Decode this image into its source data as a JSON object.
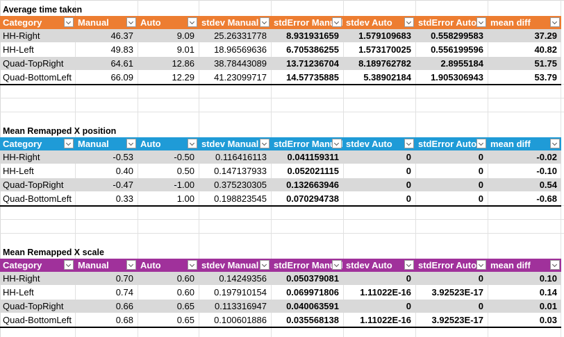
{
  "colors": {
    "orange_header": "#ed7d31",
    "blue_header": "#1f9bd7",
    "purple_header": "#a0319b",
    "stripe": "#d9d9d9"
  },
  "columns": [
    "Category",
    "Manual",
    "Auto",
    "stdev Manual",
    "stdError Manual",
    "stdev Auto",
    "stdError Auto",
    "mean diff"
  ],
  "tables": [
    {
      "title": "Average time taken",
      "rows": [
        [
          "HH-Right",
          "46.37",
          "9.09",
          "25.26331778",
          "8.931931659",
          "1.579109683",
          "0.558299583",
          "37.29"
        ],
        [
          "HH-Left",
          "49.83",
          "9.01",
          "18.96569636",
          "6.705386255",
          "1.573170025",
          "0.556199596",
          "40.82"
        ],
        [
          "Quad-TopRight",
          "64.61",
          "12.86",
          "38.78443089",
          "13.71236704",
          "8.189762782",
          "2.8955184",
          "51.75"
        ],
        [
          "Quad-BottomLeft",
          "66.09",
          "12.29",
          "41.23099717",
          "14.57735885",
          "5.38902184",
          "1.905306943",
          "53.79"
        ]
      ]
    },
    {
      "title": "Mean Remapped X position",
      "rows": [
        [
          "HH-Right",
          "-0.53",
          "-0.50",
          "0.116416113",
          "0.041159311",
          "0",
          "0",
          "-0.02"
        ],
        [
          "HH-Left",
          "0.40",
          "0.50",
          "0.147137933",
          "0.052021115",
          "0",
          "0",
          "-0.10"
        ],
        [
          "Quad-TopRight",
          "-0.47",
          "-1.00",
          "0.375230305",
          "0.132663946",
          "0",
          "0",
          "0.54"
        ],
        [
          "Quad-BottomLeft",
          "0.33",
          "1.00",
          "0.198823545",
          "0.070294738",
          "0",
          "0",
          "-0.68"
        ]
      ]
    },
    {
      "title": "Mean Remapped X scale",
      "rows": [
        [
          "HH-Right",
          "0.70",
          "0.60",
          "0.14249356",
          "0.050379081",
          "0",
          "0",
          "0.10"
        ],
        [
          "HH-Left",
          "0.74",
          "0.60",
          "0.197910154",
          "0.069971806",
          "1.11022E-16",
          "3.92523E-17",
          "0.14"
        ],
        [
          "Quad-TopRight",
          "0.66",
          "0.65",
          "0.113316947",
          "0.040063591",
          "0",
          "0",
          "0.01"
        ],
        [
          "Quad-BottomLeft",
          "0.68",
          "0.65",
          "0.100601886",
          "0.035568138",
          "1.11022E-16",
          "3.92523E-17",
          "0.03"
        ]
      ]
    }
  ]
}
